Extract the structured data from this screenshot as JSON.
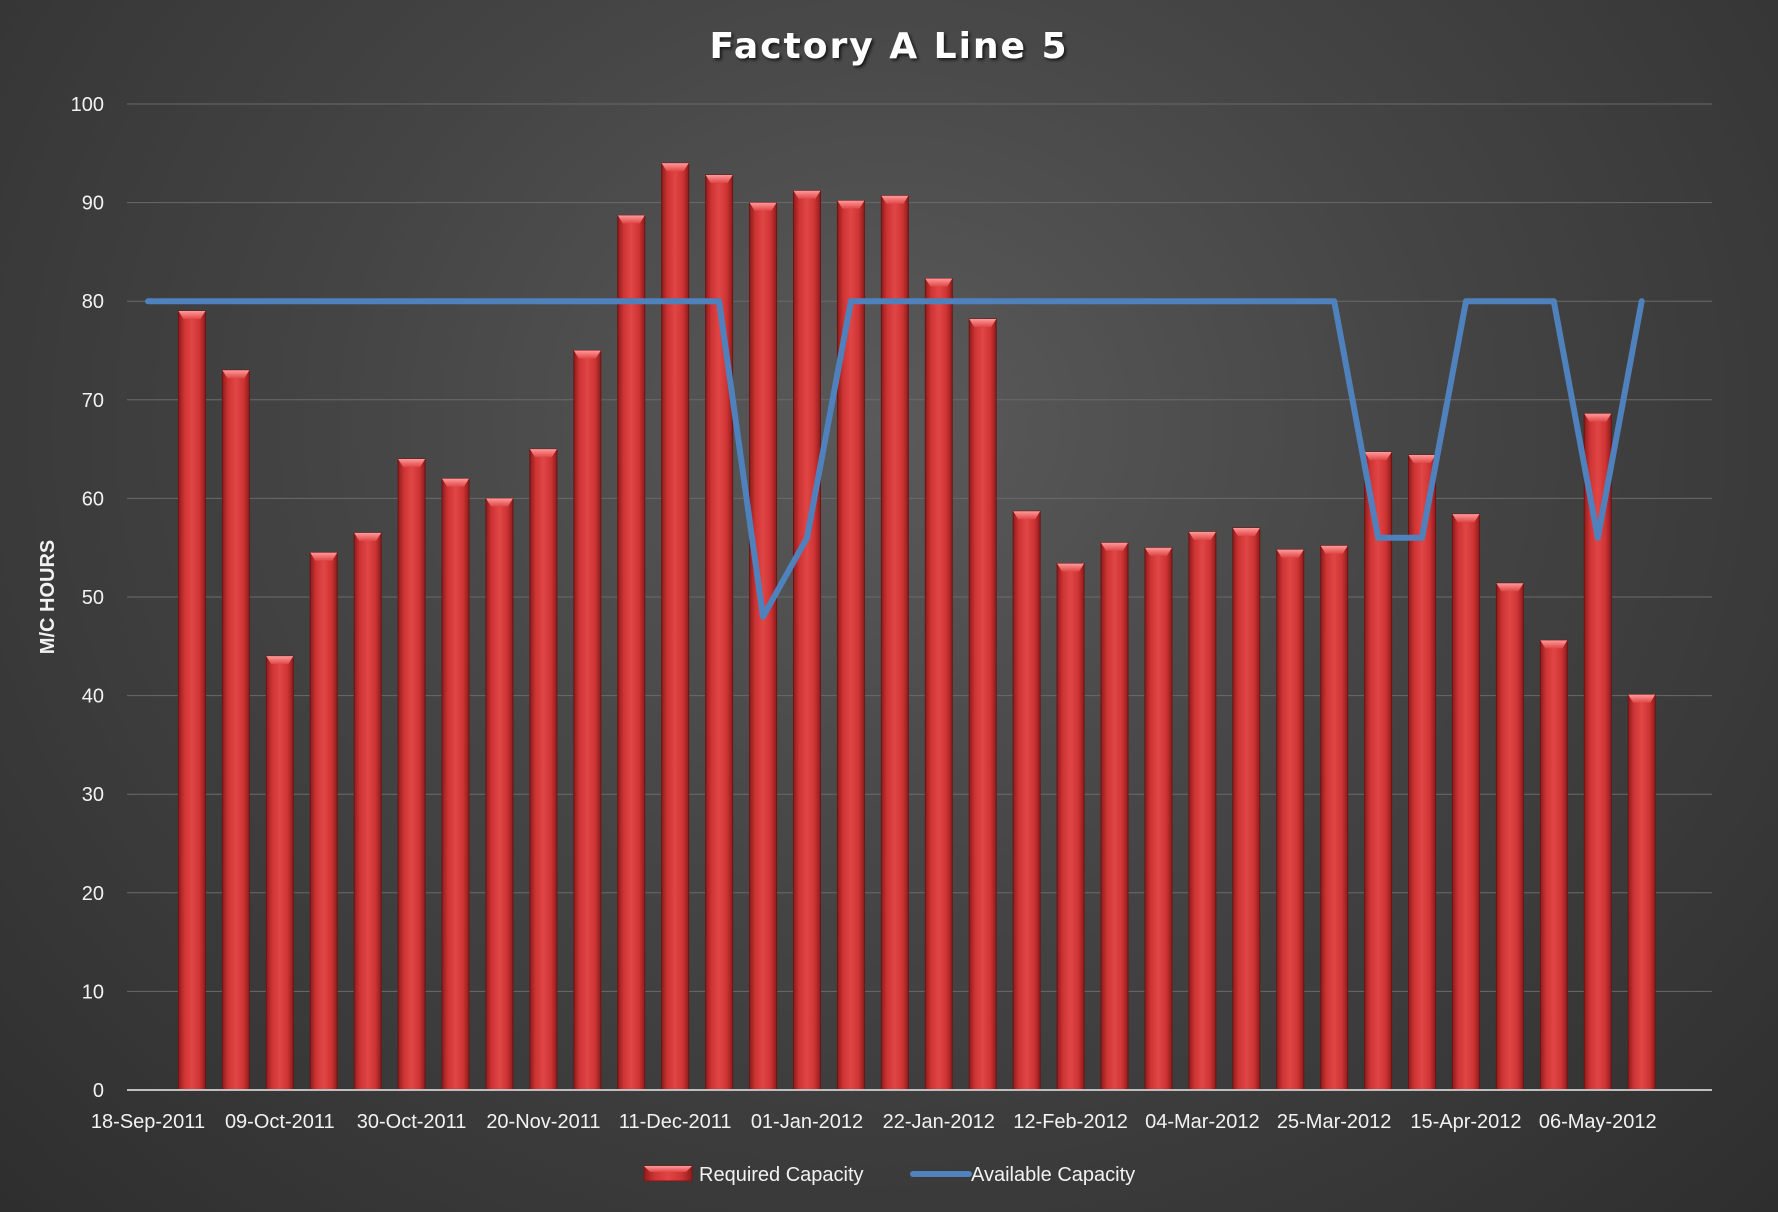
{
  "chart_data": {
    "type": "bar",
    "title": "Factory A Line 5",
    "xlabel": "",
    "ylabel": "M/C HOURS",
    "ylim": [
      0,
      100
    ],
    "yticks": [
      "0",
      "10",
      "20",
      "30",
      "40",
      "50",
      "60",
      "70",
      "80",
      "90",
      "100"
    ],
    "x_tick_labels": [
      "18-Sep-2011",
      "09-Oct-2011",
      "30-Oct-2011",
      "20-Nov-2011",
      "11-Dec-2011",
      "01-Jan-2012",
      "22-Jan-2012",
      "12-Feb-2012",
      "04-Mar-2012",
      "25-Mar-2012",
      "15-Apr-2012",
      "06-May-2012"
    ],
    "x_start_date": "18-Sep-2011",
    "x_step_days": 7,
    "grid": true,
    "legend_position": "bottom",
    "series": [
      {
        "name": "Required Capacity",
        "type": "bar",
        "color": "#d63a3a",
        "points": [
          {
            "x": "25-Sep-2011",
            "y": 79
          },
          {
            "x": "02-Oct-2011",
            "y": 73
          },
          {
            "x": "09-Oct-2011",
            "y": 44
          },
          {
            "x": "16-Oct-2011",
            "y": 54.5
          },
          {
            "x": "23-Oct-2011",
            "y": 56.5
          },
          {
            "x": "30-Oct-2011",
            "y": 64
          },
          {
            "x": "06-Nov-2011",
            "y": 62
          },
          {
            "x": "13-Nov-2011",
            "y": 60
          },
          {
            "x": "20-Nov-2011",
            "y": 65
          },
          {
            "x": "27-Nov-2011",
            "y": 75
          },
          {
            "x": "04-Dec-2011",
            "y": 88.7
          },
          {
            "x": "11-Dec-2011",
            "y": 94
          },
          {
            "x": "18-Dec-2011",
            "y": 92.8
          },
          {
            "x": "25-Dec-2011",
            "y": 90
          },
          {
            "x": "01-Jan-2012",
            "y": 91.2
          },
          {
            "x": "08-Jan-2012",
            "y": 90.2
          },
          {
            "x": "15-Jan-2012",
            "y": 90.7
          },
          {
            "x": "22-Jan-2012",
            "y": 82.3
          },
          {
            "x": "29-Jan-2012",
            "y": 78.2
          },
          {
            "x": "05-Feb-2012",
            "y": 58.7
          },
          {
            "x": "12-Feb-2012",
            "y": 53.4
          },
          {
            "x": "19-Feb-2012",
            "y": 55.5
          },
          {
            "x": "26-Feb-2012",
            "y": 55
          },
          {
            "x": "04-Mar-2012",
            "y": 56.6
          },
          {
            "x": "11-Mar-2012",
            "y": 57
          },
          {
            "x": "18-Mar-2012",
            "y": 54.8
          },
          {
            "x": "25-Mar-2012",
            "y": 55.2
          },
          {
            "x": "01-Apr-2012",
            "y": 64.7
          },
          {
            "x": "08-Apr-2012",
            "y": 64.4
          },
          {
            "x": "15-Apr-2012",
            "y": 58.4
          },
          {
            "x": "22-Apr-2012",
            "y": 51.4
          },
          {
            "x": "29-Apr-2012",
            "y": 45.6
          },
          {
            "x": "06-May-2012",
            "y": 68.6
          },
          {
            "x": "13-May-2012",
            "y": 40.1
          }
        ]
      },
      {
        "name": "Available Capacity",
        "type": "line",
        "color": "#4f81bd",
        "points": [
          {
            "x": "18-Sep-2011",
            "y": 80
          },
          {
            "x": "25-Sep-2011",
            "y": 80
          },
          {
            "x": "02-Oct-2011",
            "y": 80
          },
          {
            "x": "09-Oct-2011",
            "y": 80
          },
          {
            "x": "16-Oct-2011",
            "y": 80
          },
          {
            "x": "23-Oct-2011",
            "y": 80
          },
          {
            "x": "30-Oct-2011",
            "y": 80
          },
          {
            "x": "06-Nov-2011",
            "y": 80
          },
          {
            "x": "13-Nov-2011",
            "y": 80
          },
          {
            "x": "20-Nov-2011",
            "y": 80
          },
          {
            "x": "27-Nov-2011",
            "y": 80
          },
          {
            "x": "04-Dec-2011",
            "y": 80
          },
          {
            "x": "11-Dec-2011",
            "y": 80
          },
          {
            "x": "18-Dec-2011",
            "y": 80
          },
          {
            "x": "25-Dec-2011",
            "y": 48
          },
          {
            "x": "01-Jan-2012",
            "y": 56
          },
          {
            "x": "08-Jan-2012",
            "y": 80
          },
          {
            "x": "15-Jan-2012",
            "y": 80
          },
          {
            "x": "22-Jan-2012",
            "y": 80
          },
          {
            "x": "29-Jan-2012",
            "y": 80
          },
          {
            "x": "05-Feb-2012",
            "y": 80
          },
          {
            "x": "12-Feb-2012",
            "y": 80
          },
          {
            "x": "19-Feb-2012",
            "y": 80
          },
          {
            "x": "26-Feb-2012",
            "y": 80
          },
          {
            "x": "04-Mar-2012",
            "y": 80
          },
          {
            "x": "11-Mar-2012",
            "y": 80
          },
          {
            "x": "18-Mar-2012",
            "y": 80
          },
          {
            "x": "25-Mar-2012",
            "y": 80
          },
          {
            "x": "01-Apr-2012",
            "y": 56
          },
          {
            "x": "08-Apr-2012",
            "y": 56
          },
          {
            "x": "15-Apr-2012",
            "y": 80
          },
          {
            "x": "22-Apr-2012",
            "y": 80
          },
          {
            "x": "29-Apr-2012",
            "y": 80
          },
          {
            "x": "06-May-2012",
            "y": 56
          },
          {
            "x": "13-May-2012",
            "y": 80
          }
        ]
      }
    ]
  }
}
